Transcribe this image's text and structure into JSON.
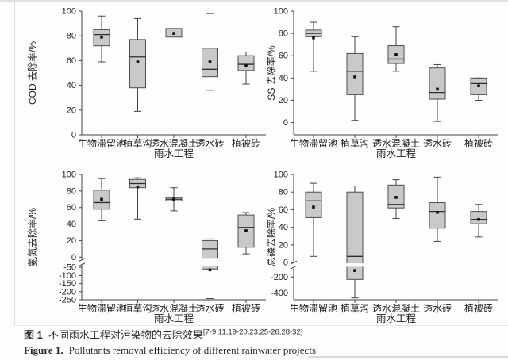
{
  "figure": {
    "caption_zh": {
      "prefix": "图 1",
      "text": "不同雨水工程对污染物的去除效果",
      "refs": "[7-9,11,19-20,23,25-26,28-32]"
    },
    "caption_en": {
      "prefix": "Figure 1.",
      "text": "Pollutants removal efficiency of different rainwater projects"
    }
  },
  "colors": {
    "box_fill": "#c9c9c9",
    "box_stroke": "#4d4d4d",
    "median": "#2e2e2e",
    "mean_marker": "#111111",
    "axis": "#444444",
    "text": "#222222"
  },
  "chart_data": [
    {
      "type": "box",
      "ylabel": "COD 去除率/%",
      "xlabel": "雨水工程",
      "categories": [
        "生物滞留池",
        "植草沟",
        "透水混凝土",
        "透水砖",
        "植被砖"
      ],
      "axis": {
        "break": false,
        "range": [
          0,
          100
        ],
        "ticks": [
          0,
          20,
          40,
          60,
          80,
          100
        ]
      },
      "boxes": [
        {
          "category": "生物滞留池",
          "low": 59,
          "q1": 72,
          "median": 81,
          "q3": 85,
          "high": 96,
          "mean": 79
        },
        {
          "category": "植草沟",
          "low": 19,
          "q1": 38,
          "median": 63,
          "q3": 77,
          "high": 94,
          "mean": 59
        },
        {
          "category": "透水混凝土",
          "low": null,
          "q1": 79,
          "median": null,
          "q3": 86,
          "high": null,
          "mean": 82
        },
        {
          "category": "透水砖",
          "low": 36,
          "q1": 47,
          "median": 53,
          "q3": 70,
          "high": 98,
          "mean": 59
        },
        {
          "category": "植被砖",
          "low": 41,
          "q1": 52,
          "median": 57,
          "q3": 64,
          "high": 67,
          "mean": 56
        }
      ]
    },
    {
      "type": "box",
      "ylabel": "SS 去除率/%",
      "xlabel": "雨水工程",
      "categories": [
        "生物滞留池",
        "植草沟",
        "透水混凝土",
        "透水砖",
        "植被砖"
      ],
      "axis": {
        "break": false,
        "range": [
          -11,
          100
        ],
        "ticks": [
          0,
          20,
          40,
          60,
          80,
          100
        ]
      },
      "boxes": [
        {
          "category": "生物滞留池",
          "low": 46,
          "q1": 77,
          "median": 80,
          "q3": 83,
          "high": 90,
          "mean": 76
        },
        {
          "category": "植草沟",
          "low": 2,
          "q1": 25,
          "median": 46,
          "q3": 62,
          "high": 77,
          "mean": 41
        },
        {
          "category": "透水混凝土",
          "low": 46,
          "q1": 53,
          "median": 57,
          "q3": 69,
          "high": 86,
          "mean": 61
        },
        {
          "category": "透水砖",
          "low": 1,
          "q1": 21,
          "median": 27,
          "q3": 49,
          "high": 52,
          "mean": 30
        },
        {
          "category": "植被砖",
          "low": 20,
          "q1": 25,
          "median": 35,
          "q3": 40,
          "high": 40,
          "mean": 33
        }
      ]
    },
    {
      "type": "box",
      "ylabel": "氨氮去除率/%",
      "xlabel": "雨水工程",
      "categories": [
        "生物滞留池",
        "植草沟",
        "透水混凝土",
        "透水砖",
        "植被砖"
      ],
      "axis": {
        "break": true,
        "top_range": [
          0,
          100
        ],
        "top_ticks": [
          0,
          20,
          40,
          60,
          80,
          100
        ],
        "bottom_range": [
          -250,
          -50
        ],
        "bottom_ticks": [
          -50,
          -100,
          -150,
          -200,
          -250
        ]
      },
      "boxes": [
        {
          "category": "生物滞留池",
          "low": 44,
          "q1": 58,
          "median": 66,
          "q3": 81,
          "high": 95,
          "mean": 70
        },
        {
          "category": "植草沟",
          "low": 46,
          "q1": 84,
          "median": 89,
          "q3": 94,
          "high": 96,
          "mean": 85
        },
        {
          "category": "透水混凝土",
          "low": 56,
          "q1": 68,
          "median": 70,
          "q3": 72,
          "high": 84,
          "mean": 70
        },
        {
          "category": "透水砖",
          "low": -243,
          "q1": -60,
          "median": 10,
          "q3": 20,
          "high": 22,
          "mean": -65
        },
        {
          "category": "植被砖",
          "low": 4,
          "q1": 12,
          "median": 36,
          "q3": 51,
          "high": 54,
          "mean": 32
        }
      ]
    },
    {
      "type": "box",
      "ylabel": "总磷去除率/%",
      "xlabel": "雨水工程",
      "categories": [
        "生物滞留池",
        "植草沟",
        "透水混凝土",
        "透水砖",
        "植被砖"
      ],
      "axis": {
        "break": true,
        "top_range": [
          0,
          100
        ],
        "top_ticks": [
          0,
          20,
          40,
          60,
          80,
          100
        ],
        "bottom_range": [
          -483,
          -83
        ],
        "bottom_ticks": [
          -200,
          -400
        ]
      },
      "boxes": [
        {
          "category": "生物滞留池",
          "low": 7,
          "q1": 51,
          "median": 70,
          "q3": 80,
          "high": 90,
          "mean": 63
        },
        {
          "category": "植草沟",
          "low": -460,
          "q1": -230,
          "median": 7,
          "q3": 80,
          "high": 87,
          "mean": -120
        },
        {
          "category": "透水混凝土",
          "low": 50,
          "q1": 62,
          "median": 66,
          "q3": 88,
          "high": 94,
          "mean": 74
        },
        {
          "category": "透水砖",
          "low": 24,
          "q1": 39,
          "median": 58,
          "q3": 68,
          "high": 97,
          "mean": 57
        },
        {
          "category": "植被砖",
          "low": 29,
          "q1": 44,
          "median": 49,
          "q3": 58,
          "high": 66,
          "mean": 49
        }
      ]
    }
  ]
}
